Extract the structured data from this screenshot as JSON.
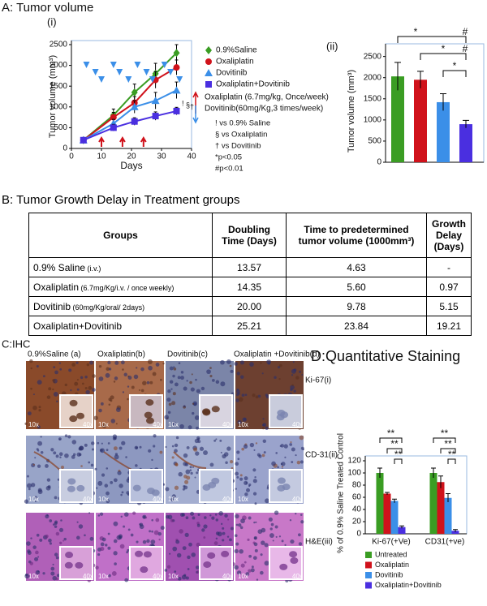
{
  "chart_data": [
    {
      "type": "line",
      "title": "A: Tumor volume",
      "subtitle": "(i)",
      "x_label": "Days",
      "y_label": "Tumor volume (mm³)",
      "x": [
        4,
        14,
        21,
        28,
        35
      ],
      "series": [
        {
          "name": "0.9%Saline",
          "color": "#3a9d23",
          "marker": "diamond",
          "values": [
            200,
            800,
            1350,
            1800,
            2300
          ],
          "errors": [
            40,
            150,
            200,
            250,
            200
          ]
        },
        {
          "name": "Oxaliplatin",
          "color": "#d0121b",
          "marker": "circle",
          "values": [
            200,
            750,
            1100,
            1650,
            1950
          ],
          "errors": [
            40,
            120,
            150,
            200,
            180
          ]
        },
        {
          "name": "Dovitinib",
          "color": "#3b8fe8",
          "marker": "triangle",
          "values": [
            200,
            600,
            1000,
            1150,
            1400
          ],
          "errors": [
            40,
            100,
            150,
            200,
            200
          ]
        },
        {
          "name": "Oxaliplatin+Dovitinib",
          "color": "#4a2fe0",
          "marker": "square",
          "values": [
            200,
            500,
            650,
            780,
            900
          ],
          "errors": [
            30,
            80,
            90,
            100,
            90
          ]
        }
      ],
      "xlim": [
        0,
        40
      ],
      "xticks": [
        0,
        10,
        20,
        30,
        40
      ],
      "ylim": [
        0,
        2500
      ],
      "yticks": [
        0,
        500,
        1000,
        1500,
        2000,
        2500
      ],
      "oxaliplatin_doses": [
        10,
        17,
        24
      ],
      "dovitinib_doses": [
        5,
        8,
        10,
        14,
        16,
        19,
        22,
        25,
        27,
        31,
        33,
        36
      ],
      "point_annotations": [
        "!",
        "§",
        "†"
      ],
      "annotations": [
        "Oxaliplatin (6.7mg/kg, Once/week)",
        "Dovitinib(60mg/Kg,3 times/week)",
        "! vs 0.9% Saline",
        "§ vs Oxaliplatin",
        "† vs Dovitinib",
        "*p<0.05",
        "#p<0.01"
      ]
    },
    {
      "type": "bar",
      "subtitle": "(ii)",
      "y_label": "Tumor volume (mm³)",
      "categories": [
        null,
        null,
        null,
        null
      ],
      "values": [
        2030,
        1950,
        1420,
        900
      ],
      "errors": [
        330,
        200,
        200,
        90
      ],
      "colors": [
        "#3a9d23",
        "#d0121b",
        "#3b8fe8",
        "#4a2fe0"
      ],
      "ylim": [
        0,
        2800
      ],
      "yticks": [
        0,
        500,
        1000,
        1500,
        2000,
        2500
      ],
      "significance": [
        "*",
        "#",
        "*",
        "#",
        "*"
      ]
    },
    {
      "type": "grouped_bar",
      "title": "D:Quantitative Staining",
      "y_label": "% of 0.9% Saline Treated Control",
      "categories": [
        "Ki-67(+Ve)",
        "CD31(+ve)"
      ],
      "series": [
        {
          "name": "Untreated",
          "color": "#3a9d23",
          "values": [
            100,
            100
          ],
          "errors": [
            8,
            8
          ]
        },
        {
          "name": "Oxaliplatin",
          "color": "#d0121b",
          "values": [
            66,
            85
          ],
          "errors": [
            2,
            10
          ]
        },
        {
          "name": "Dovitinib",
          "color": "#3b8fe8",
          "values": [
            54,
            59
          ],
          "errors": [
            3,
            7
          ]
        },
        {
          "name": "Oxaliplatin+Dovitinib",
          "color": "#4a2fe0",
          "values": [
            11,
            5
          ],
          "errors": [
            2,
            2
          ]
        }
      ],
      "ylim": [
        0,
        120
      ],
      "yticks": [
        0,
        20,
        40,
        60,
        80,
        100,
        120
      ],
      "significance": [
        "**",
        "**",
        "**",
        "**",
        "**",
        "**"
      ]
    }
  ],
  "table": {
    "title": "B: Tumor Growth Delay in Treatment groups",
    "header": [
      "Groups",
      "Doubling Time (Days)",
      "Time to predetermined tumor volume (1000mm³)",
      "Growth Delay (Days)"
    ],
    "rows": [
      [
        {
          "name": "0.9% Saline",
          "note": " (i.v.)"
        },
        "13.57",
        "4.63",
        "-"
      ],
      [
        {
          "name": "Oxaliplatin",
          "note": " (6.7mg/Kg/i.v. / once weekly)"
        },
        "14.35",
        "5.60",
        "0.97"
      ],
      [
        {
          "name": "Dovitinib",
          "note": " (60mg/Kg/oral/ 2days)"
        },
        "20.00",
        "9.78",
        "5.15"
      ],
      [
        {
          "name": "Oxaliplatin+Dovitinib"
        },
        "25.21",
        "23.84",
        "19.21"
      ]
    ]
  },
  "ihc": {
    "title": "C:IHC",
    "columns": [
      "0.9%Saline (a)",
      "Oxaliplatin(b)",
      "Dovitinib(c)",
      "Oxaliplatin +Dovitinib(d)"
    ],
    "rows": [
      "Ki-67(i)",
      "CD-31(ii)",
      "H&E(iii)"
    ],
    "mag_low": "10x",
    "mag_high": "40x"
  }
}
